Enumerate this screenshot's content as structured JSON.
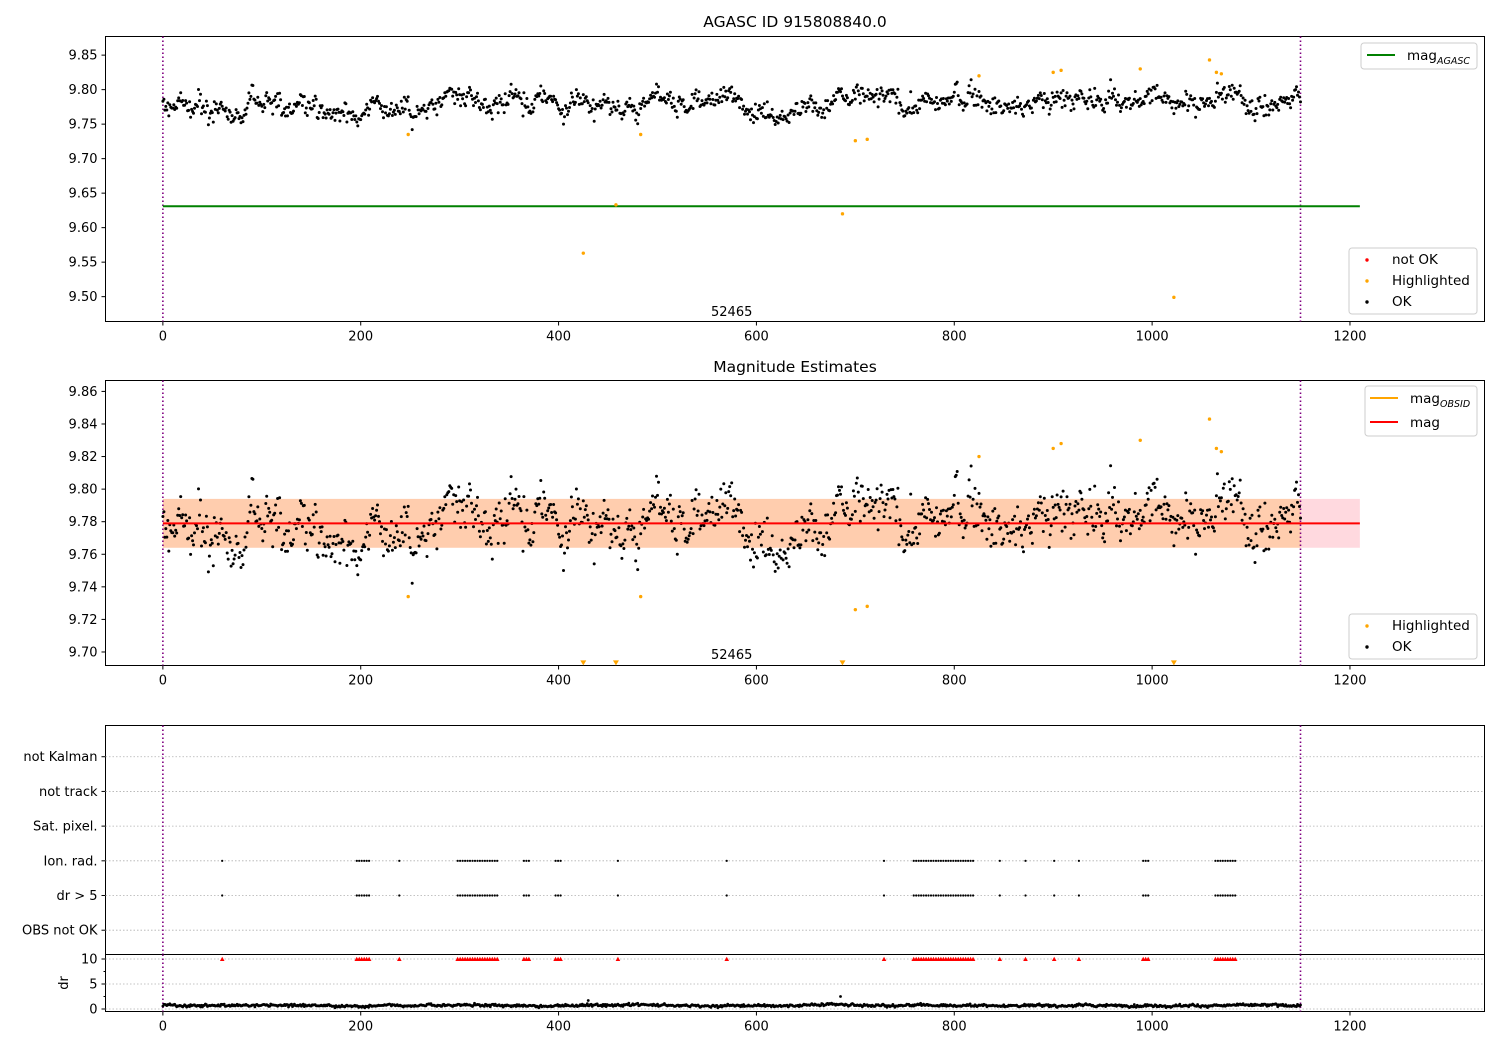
{
  "chart_data": [
    {
      "id": "agasc",
      "type": "scatter",
      "title": "AGASC ID 915808840.0",
      "xlim": [
        -58,
        1336
      ],
      "ylim": [
        9.464,
        9.877
      ],
      "xticks": [
        0,
        200,
        400,
        600,
        800,
        1000,
        1200
      ],
      "yticks": [
        9.5,
        9.55,
        9.6,
        9.65,
        9.7,
        9.75,
        9.8,
        9.85
      ],
      "ytick_labels": [
        "9.50",
        "9.55",
        "9.60",
        "9.65",
        "9.70",
        "9.75",
        "9.80",
        "9.85"
      ],
      "vlines": [
        0,
        1150
      ],
      "annotation": {
        "text": "52465",
        "x": 575,
        "y": 9.478
      },
      "hline": {
        "name": "mag",
        "subscript": "AGASC",
        "y": 9.631,
        "x_range": [
          0,
          1210
        ],
        "color": "#008000"
      },
      "ok_band": {
        "y_center": 9.78,
        "y_spread": 0.012,
        "x_range": [
          0,
          1150
        ]
      },
      "highlighted": {
        "x": [
          248,
          425,
          458,
          483,
          687,
          700,
          712,
          825,
          900,
          908,
          988,
          1022,
          1058,
          1065,
          1070
        ],
        "y": [
          9.735,
          9.563,
          9.633,
          9.735,
          9.62,
          9.726,
          9.728,
          9.82,
          9.825,
          9.828,
          9.83,
          9.499,
          9.843,
          9.825,
          9.823
        ]
      },
      "legends": [
        {
          "position": "upper-right",
          "entries": [
            {
              "label": "mag",
              "subscript": "AGASC",
              "kind": "line",
              "color": "#008000"
            }
          ]
        },
        {
          "position": "lower-right",
          "entries": [
            {
              "label": "not OK",
              "kind": "dot",
              "color": "#ff0000"
            },
            {
              "label": "Highlighted",
              "kind": "dot",
              "color": "#ffa500"
            },
            {
              "label": "OK",
              "kind": "dot",
              "color": "#000000"
            }
          ]
        }
      ]
    },
    {
      "id": "estimates",
      "type": "scatter",
      "title": "Magnitude Estimates",
      "xlim": [
        -58,
        1336
      ],
      "ylim": [
        9.6917,
        9.8667
      ],
      "xticks": [
        0,
        200,
        400,
        600,
        800,
        1000,
        1200
      ],
      "yticks": [
        9.7,
        9.72,
        9.74,
        9.76,
        9.78,
        9.8,
        9.82,
        9.84,
        9.86
      ],
      "ytick_labels": [
        "9.70",
        "9.72",
        "9.74",
        "9.76",
        "9.78",
        "9.80",
        "9.82",
        "9.84",
        "9.86"
      ],
      "vlines": [
        0,
        1150
      ],
      "annotation": {
        "text": "52465",
        "x": 575,
        "y": 9.698
      },
      "mag_line": {
        "name": "mag",
        "y": 9.779,
        "x_range": [
          0,
          1210
        ],
        "color": "#ff0000"
      },
      "mag_band": {
        "y_range": [
          9.764,
          9.794
        ],
        "x_range": [
          0,
          1210
        ],
        "color": "#ffd9df"
      },
      "obsid_band": {
        "name": "mag",
        "subscript": "OBSID",
        "y_range": [
          9.764,
          9.794
        ],
        "x_range": [
          0,
          1150
        ],
        "color": "#ffa500"
      },
      "ok_band": {
        "y_center": 9.78,
        "y_spread": 0.012,
        "x_range": [
          0,
          1150
        ]
      },
      "highlighted": {
        "x": [
          248,
          483,
          700,
          712,
          825,
          900,
          908,
          988,
          1058,
          1065,
          1070
        ],
        "y": [
          9.734,
          9.734,
          9.726,
          9.728,
          9.82,
          9.825,
          9.828,
          9.83,
          9.843,
          9.825,
          9.823
        ]
      },
      "below_range": {
        "x": [
          425,
          458,
          687,
          1022
        ],
        "y": 9.693,
        "color": "#ffa500"
      },
      "legends": [
        {
          "position": "upper-right",
          "entries": [
            {
              "label": "mag",
              "subscript": "OBSID",
              "kind": "line",
              "color": "#ffa500"
            },
            {
              "label": "mag",
              "kind": "line",
              "color": "#ff0000"
            }
          ]
        },
        {
          "position": "lower-right",
          "entries": [
            {
              "label": "Highlighted",
              "kind": "dot",
              "color": "#ffa500"
            },
            {
              "label": "OK",
              "kind": "dot",
              "color": "#000000"
            }
          ]
        }
      ]
    },
    {
      "id": "flags",
      "type": "scatter",
      "xlim": [
        -58,
        1336
      ],
      "ylim": [
        -0.7,
        5.9
      ],
      "vlines": [
        0,
        1150
      ],
      "categories": [
        "OBS not OK",
        "dr > 5",
        "Ion. rad.",
        "Sat. pixel.",
        "not track",
        "not Kalman"
      ],
      "flag_groups": [
        [
          60,
          60
        ],
        [
          196,
          210
        ],
        [
          239,
          239
        ],
        [
          298,
          338
        ],
        [
          365,
          370
        ],
        [
          397,
          403
        ],
        [
          460,
          460
        ],
        [
          570,
          570
        ],
        [
          729,
          729
        ],
        [
          759,
          821
        ],
        [
          846,
          846
        ],
        [
          872,
          872
        ],
        [
          901,
          901
        ],
        [
          926,
          926
        ],
        [
          991,
          998
        ],
        [
          1064,
          1085
        ]
      ],
      "flag_step": 2.5,
      "flagged_rows": [
        "dr > 5",
        "Ion. rad."
      ]
    },
    {
      "id": "dr",
      "type": "scatter",
      "ylabel": "dr",
      "xlim": [
        -58,
        1336
      ],
      "ylim": [
        -0.5,
        10.9
      ],
      "xticks": [
        0,
        200,
        400,
        600,
        800,
        1000,
        1200
      ],
      "yticks": [
        0,
        5,
        10
      ],
      "ytick_labels": [
        "0",
        "5",
        "10"
      ],
      "vlines": [
        0,
        1150
      ],
      "dr_level": 0.7,
      "dr_spikes": [
        [
          430,
          1.7
        ],
        [
          685,
          2.5
        ]
      ],
      "capped_y": 10,
      "capped_color": "#ff0000"
    }
  ]
}
